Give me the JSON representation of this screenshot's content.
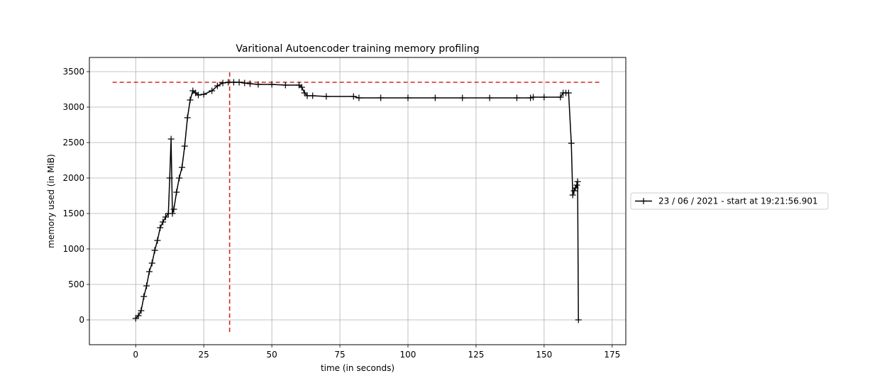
{
  "chart_data": {
    "type": "line",
    "title": "Varitional Autoencoder training memory profiling",
    "xlabel": "time (in seconds)",
    "ylabel": "memory used (in MiB)",
    "xlim": [
      -17,
      180
    ],
    "ylim": [
      -350,
      3700
    ],
    "xticks": [
      0,
      25,
      50,
      75,
      100,
      125,
      150,
      175
    ],
    "yticks": [
      0,
      500,
      1000,
      1500,
      2000,
      2500,
      3000,
      3500
    ],
    "grid": true,
    "legend_position": "center-right outside",
    "marker": "+",
    "colors": {
      "series": "#000000",
      "reference": "#d62728",
      "grid": "#b0b0b0"
    },
    "series": [
      {
        "name": "23 / 06 / 2021 - start at 19:21:56.901",
        "x": [
          0,
          1,
          2,
          3,
          4,
          5,
          6,
          7,
          8,
          9,
          10,
          11,
          12,
          12.5,
          13,
          13.5,
          14,
          15,
          16,
          17,
          18,
          19,
          20,
          21,
          22,
          23,
          25,
          28,
          30,
          32,
          34,
          36,
          38,
          40,
          42,
          45,
          50,
          55,
          60,
          61,
          62,
          63,
          65,
          70,
          80,
          82,
          90,
          100,
          110,
          120,
          130,
          140,
          145,
          146,
          150,
          156,
          157,
          158,
          159,
          160,
          160.5,
          161,
          161.5,
          162,
          162.3,
          162.6
        ],
        "y": [
          20,
          60,
          130,
          330,
          480,
          680,
          800,
          980,
          1120,
          1300,
          1380,
          1450,
          1500,
          2000,
          2550,
          1500,
          1560,
          1800,
          2000,
          2150,
          2450,
          2850,
          3100,
          3230,
          3200,
          3170,
          3180,
          3230,
          3300,
          3340,
          3350,
          3350,
          3350,
          3340,
          3330,
          3320,
          3320,
          3310,
          3310,
          3280,
          3200,
          3160,
          3160,
          3150,
          3150,
          3130,
          3130,
          3130,
          3130,
          3130,
          3130,
          3130,
          3130,
          3140,
          3140,
          3140,
          3200,
          3200,
          3200,
          2490,
          1760,
          1820,
          1860,
          1900,
          1950,
          0
        ]
      }
    ],
    "reference_lines": [
      {
        "orientation": "horizontal",
        "y": 3350,
        "x_range": [
          -8.5,
          171
        ]
      },
      {
        "orientation": "vertical",
        "x": 34.5,
        "y_range": [
          -170,
          3520
        ]
      }
    ]
  }
}
